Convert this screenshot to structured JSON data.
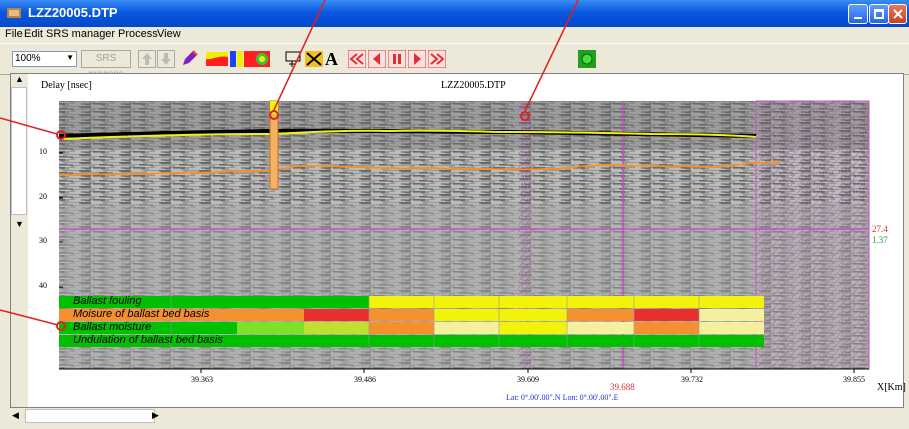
{
  "window": {
    "title": "LZZ20005.DTP"
  },
  "menu": {
    "items": [
      "File",
      "Edit",
      "SRS manager",
      "Process",
      "View"
    ]
  },
  "toolbar": {
    "zoom_value": "100%",
    "srs_process_label": "SRS process"
  },
  "plot": {
    "title": "LZZ20005.DTP",
    "y_label": "Delay [nsec]",
    "x_label": "X[Km]",
    "y_ticks": [
      "10",
      "20",
      "30",
      "40"
    ],
    "x_ticks": [
      "39.363",
      "39.486",
      "39.609",
      "39.732",
      "39.855"
    ],
    "cursor_x": "39.688",
    "cursor_y_value": "27.4",
    "cursor_y_value2": "1.37",
    "lat_lon": "Lat: 0°.00'.00\".N   Lon: 0°.00'.00\".E",
    "colors": {
      "red": "#e83030",
      "green": "#00c000",
      "yellow": "#f2f20a",
      "orange": "#f59030",
      "light_yellow": "#f5f0a0",
      "magenta": "#c050c0"
    }
  },
  "bars": [
    {
      "label": "Ballast fouling"
    },
    {
      "label": "Moisure of ballast bed basis"
    },
    {
      "label": "Ballast moisture"
    },
    {
      "label": "Undulation of ballast bed basis"
    }
  ]
}
